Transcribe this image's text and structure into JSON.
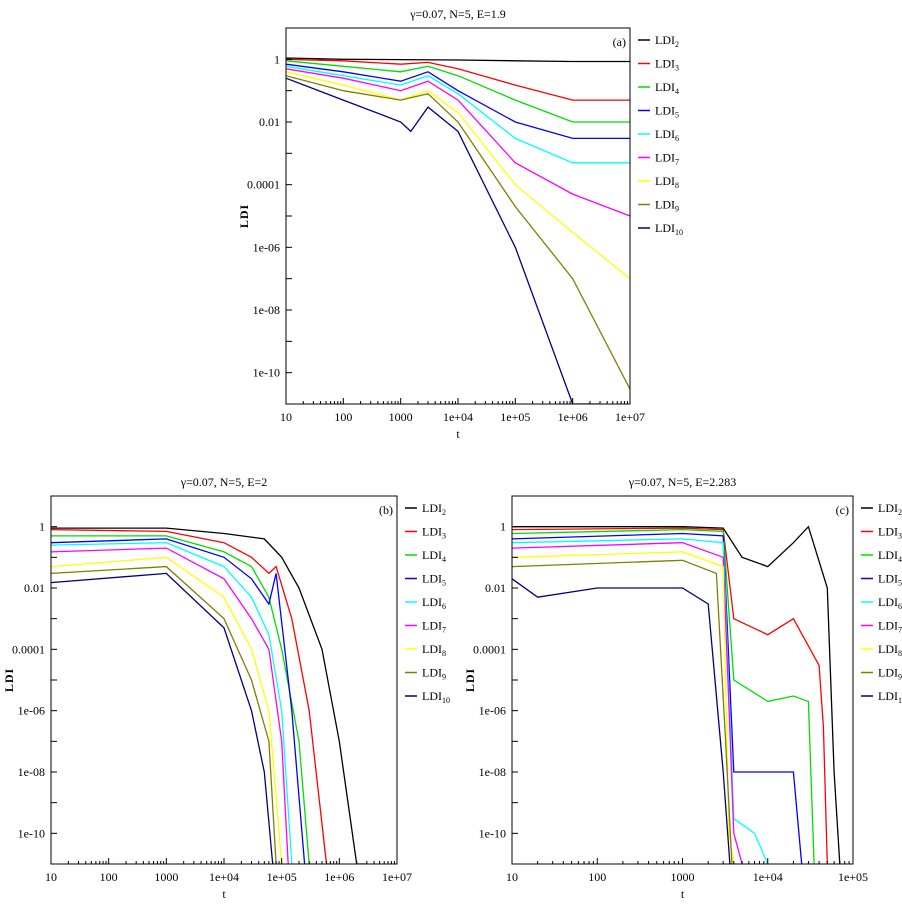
{
  "colors": {
    "LDI_2": "#000000",
    "LDI_3": "#ff0000",
    "LDI_4": "#00dd00",
    "LDI_5": "#0000ff",
    "LDI_6": "#00ffff",
    "LDI_7": "#ff00ff",
    "LDI_8": "#ffff00",
    "LDI_9": "#808000",
    "LDI_10": "#000080"
  },
  "chart_data": [
    {
      "type": "line",
      "panel": "(a)",
      "title": "γ=0.07, N=5, E=1.9",
      "xlabel": "t",
      "ylabel": "LDI",
      "xscale": "log",
      "yscale": "log",
      "xlim": [
        10,
        10000000
      ],
      "ylim": [
        1e-11,
        10
      ],
      "xticks": [
        "10",
        "100",
        "1000",
        "1e+04",
        "1e+05",
        "1e+06",
        "1e+07"
      ],
      "yticks": [
        "1",
        "0.01",
        "0.0001",
        "1e-06",
        "1e-08",
        "1e-10"
      ],
      "legend_position": "outside-right",
      "series": [
        {
          "name": "LDI",
          "sub": "2",
          "color_key": "LDI_2",
          "x": [
            10,
            100,
            1000,
            10000,
            100000,
            1000000,
            10000000
          ],
          "y": [
            1.1,
            1.0,
            0.98,
            0.95,
            0.9,
            0.85,
            0.85
          ]
        },
        {
          "name": "LDI",
          "sub": "3",
          "color_key": "LDI_3",
          "x": [
            10,
            100,
            1000,
            3000,
            10000,
            100000,
            1000000,
            10000000
          ],
          "y": [
            1.0,
            0.9,
            0.7,
            0.8,
            0.5,
            0.15,
            0.05,
            0.05
          ]
        },
        {
          "name": "LDI",
          "sub": "4",
          "color_key": "LDI_4",
          "x": [
            10,
            100,
            1000,
            3000,
            10000,
            100000,
            1000000,
            10000000
          ],
          "y": [
            0.9,
            0.6,
            0.4,
            0.6,
            0.3,
            0.05,
            0.01,
            0.01
          ]
        },
        {
          "name": "LDI",
          "sub": "5",
          "color_key": "LDI_5",
          "x": [
            10,
            100,
            1000,
            3000,
            10000,
            100000,
            1000000,
            10000000
          ],
          "y": [
            0.7,
            0.4,
            0.2,
            0.4,
            0.1,
            0.01,
            0.003,
            0.003
          ]
        },
        {
          "name": "LDI",
          "sub": "6",
          "color_key": "LDI_6",
          "x": [
            10,
            100,
            1000,
            3000,
            10000,
            100000,
            1000000,
            10000000
          ],
          "y": [
            0.6,
            0.3,
            0.15,
            0.3,
            0.08,
            0.003,
            0.0005,
            0.0005
          ]
        },
        {
          "name": "LDI",
          "sub": "7",
          "color_key": "LDI_7",
          "x": [
            10,
            100,
            1000,
            3000,
            10000,
            100000,
            1000000,
            10000000
          ],
          "y": [
            0.5,
            0.25,
            0.1,
            0.2,
            0.05,
            0.0005,
            5e-05,
            1e-05
          ]
        },
        {
          "name": "LDI",
          "sub": "8",
          "color_key": "LDI_8",
          "x": [
            10,
            100,
            1000,
            3000,
            10000,
            100000,
            1000000,
            10000000
          ],
          "y": [
            0.4,
            0.15,
            0.05,
            0.1,
            0.02,
            0.0001,
            3e-06,
            1e-07
          ]
        },
        {
          "name": "LDI",
          "sub": "9",
          "color_key": "LDI_9",
          "x": [
            10,
            100,
            1000,
            3000,
            10000,
            100000,
            1000000,
            10000000
          ],
          "y": [
            0.3,
            0.1,
            0.05,
            0.08,
            0.01,
            2e-05,
            1e-07,
            3e-11
          ]
        },
        {
          "name": "LDI",
          "sub": "10",
          "color_key": "LDI_10",
          "x": [
            10,
            100,
            1000,
            1500,
            3000,
            10000,
            100000,
            1000000,
            3000000
          ],
          "y": [
            0.25,
            0.05,
            0.01,
            0.005,
            0.03,
            0.005,
            1e-06,
            1e-11,
            1e-11
          ]
        }
      ]
    },
    {
      "type": "line",
      "panel": "(b)",
      "title": "γ=0.07, N=5, E=2",
      "xlabel": "t",
      "ylabel": "LDI",
      "xscale": "log",
      "yscale": "log",
      "xlim": [
        10,
        10000000
      ],
      "ylim": [
        1e-11,
        10
      ],
      "xticks": [
        "10",
        "100",
        "1000",
        "1e+04",
        "1e+05",
        "1e+06",
        "1e+07"
      ],
      "yticks": [
        "1",
        "0.01",
        "0.0001",
        "1e-06",
        "1e-08",
        "1e-10"
      ],
      "legend_position": "outside-right",
      "series": [
        {
          "name": "LDI",
          "sub": "2",
          "color_key": "LDI_2",
          "x": [
            10,
            1000,
            10000,
            50000,
            100000,
            200000,
            500000,
            1000000,
            2000000,
            3000000
          ],
          "y": [
            0.9,
            0.9,
            0.6,
            0.4,
            0.1,
            0.01,
            0.0001,
            1e-07,
            1e-11,
            1e-11
          ]
        },
        {
          "name": "LDI",
          "sub": "3",
          "color_key": "LDI_3",
          "x": [
            10,
            1000,
            10000,
            30000,
            60000,
            80000,
            150000,
            300000,
            600000,
            700000
          ],
          "y": [
            0.8,
            0.7,
            0.3,
            0.1,
            0.03,
            0.05,
            0.001,
            1e-06,
            1e-11,
            1e-11
          ]
        },
        {
          "name": "LDI",
          "sub": "4",
          "color_key": "LDI_4",
          "x": [
            10,
            1000,
            10000,
            30000,
            60000,
            100000,
            200000,
            300000,
            400000
          ],
          "y": [
            0.5,
            0.5,
            0.15,
            0.05,
            0.005,
            0.0001,
            1e-07,
            1e-11,
            1e-11
          ]
        },
        {
          "name": "LDI",
          "sub": "5",
          "color_key": "LDI_5",
          "x": [
            10,
            1000,
            10000,
            30000,
            60000,
            80000,
            150000,
            250000
          ],
          "y": [
            0.3,
            0.4,
            0.1,
            0.02,
            0.003,
            0.03,
            1e-06,
            1e-11
          ]
        },
        {
          "name": "LDI",
          "sub": "6",
          "color_key": "LDI_6",
          "x": [
            10,
            1000,
            10000,
            30000,
            60000,
            100000,
            150000
          ],
          "y": [
            0.25,
            0.3,
            0.05,
            0.005,
            0.0003,
            1e-06,
            1e-11
          ]
        },
        {
          "name": "LDI",
          "sub": "7",
          "color_key": "LDI_7",
          "x": [
            10,
            1000,
            10000,
            30000,
            60000,
            100000,
            130000
          ],
          "y": [
            0.15,
            0.2,
            0.02,
            0.001,
            0.0001,
            1e-07,
            1e-11
          ]
        },
        {
          "name": "LDI",
          "sub": "8",
          "color_key": "LDI_8",
          "x": [
            10,
            1000,
            10000,
            30000,
            60000,
            100000
          ],
          "y": [
            0.05,
            0.1,
            0.005,
            0.0001,
            1e-06,
            1e-11
          ]
        },
        {
          "name": "LDI",
          "sub": "9",
          "color_key": "LDI_9",
          "x": [
            10,
            1000,
            10000,
            30000,
            60000,
            80000
          ],
          "y": [
            0.03,
            0.05,
            0.001,
            1e-05,
            1e-07,
            1e-11
          ]
        },
        {
          "name": "LDI",
          "sub": "10",
          "color_key": "LDI_10",
          "x": [
            10,
            1000,
            10000,
            30000,
            50000,
            70000
          ],
          "y": [
            0.015,
            0.03,
            0.0005,
            1e-06,
            1e-08,
            1e-11
          ]
        }
      ]
    },
    {
      "type": "line",
      "panel": "(c)",
      "title": "γ=0.07, N=5, E=2.283",
      "xlabel": "t",
      "ylabel": "LDI",
      "xscale": "log",
      "yscale": "log",
      "xlim": [
        10,
        100000
      ],
      "ylim": [
        1e-11,
        10
      ],
      "xticks": [
        "10",
        "100",
        "1000",
        "1e+04",
        "1e+05"
      ],
      "yticks": [
        "1",
        "0.01",
        "0.0001",
        "1e-06",
        "1e-08",
        "1e-10"
      ],
      "legend_position": "outside-right",
      "series": [
        {
          "name": "LDI",
          "sub": "2",
          "color_key": "LDI_2",
          "x": [
            10,
            1000,
            3000,
            5000,
            10000,
            20000,
            30000,
            50000,
            60000,
            70000
          ],
          "y": [
            1.0,
            1.0,
            0.9,
            0.1,
            0.05,
            0.3,
            1.0,
            0.01,
            1e-08,
            1e-11
          ]
        },
        {
          "name": "LDI",
          "sub": "3",
          "color_key": "LDI_3",
          "x": [
            10,
            1000,
            3000,
            4000,
            10000,
            20000,
            40000,
            45000,
            50000
          ],
          "y": [
            0.8,
            0.9,
            0.8,
            0.001,
            0.0003,
            0.001,
            3e-05,
            3e-07,
            1e-11
          ]
        },
        {
          "name": "LDI",
          "sub": "4",
          "color_key": "LDI_4",
          "x": [
            10,
            1000,
            3000,
            4000,
            10000,
            20000,
            30000,
            35000
          ],
          "y": [
            0.6,
            0.8,
            0.7,
            1e-05,
            2e-06,
            3e-06,
            2e-06,
            1e-11
          ]
        },
        {
          "name": "LDI",
          "sub": "5",
          "color_key": "LDI_5",
          "x": [
            10,
            1000,
            3000,
            4000,
            10000,
            20000,
            25000
          ],
          "y": [
            0.4,
            0.6,
            0.5,
            1e-08,
            1e-08,
            1e-08,
            1e-11
          ]
        },
        {
          "name": "LDI",
          "sub": "6",
          "color_key": "LDI_6",
          "x": [
            10,
            1000,
            3000,
            4000,
            7000,
            10000
          ],
          "y": [
            0.3,
            0.4,
            0.3,
            3e-10,
            1e-10,
            1e-11
          ]
        },
        {
          "name": "LDI",
          "sub": "7",
          "color_key": "LDI_7",
          "x": [
            10,
            1000,
            3000,
            4000,
            5000
          ],
          "y": [
            0.2,
            0.3,
            0.1,
            1e-10,
            1e-11
          ]
        },
        {
          "name": "LDI",
          "sub": "8",
          "color_key": "LDI_8",
          "x": [
            10,
            1000,
            3000,
            3500,
            4000
          ],
          "y": [
            0.1,
            0.15,
            0.05,
            1e-10,
            1e-11
          ]
        },
        {
          "name": "LDI",
          "sub": "9",
          "color_key": "LDI_9",
          "x": [
            10,
            1000,
            2500,
            3200,
            3800
          ],
          "y": [
            0.05,
            0.08,
            0.03,
            1e-07,
            1e-11
          ]
        },
        {
          "name": "LDI",
          "sub": "10",
          "color_key": "LDI_10",
          "x": [
            10,
            20,
            100,
            1000,
            2000,
            3000,
            3600
          ],
          "y": [
            0.02,
            0.005,
            0.01,
            0.01,
            0.003,
            1e-08,
            1e-11
          ]
        }
      ]
    }
  ]
}
